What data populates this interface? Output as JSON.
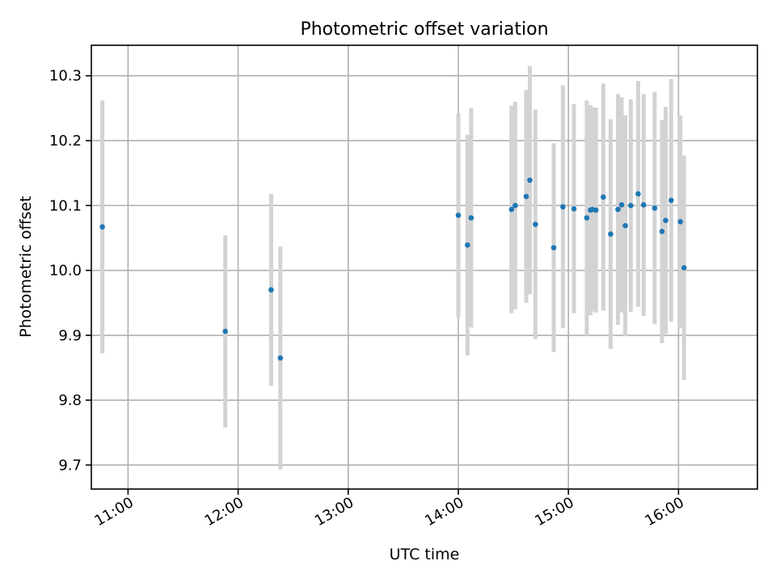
{
  "chart_data": {
    "type": "scatter",
    "title": "Photometric offset variation",
    "xlabel": "UTC time",
    "ylabel": "Photometric offset",
    "grid": true,
    "legend": "none",
    "x_unit": "UTC time (HH:MM)",
    "xlim": [
      "10:40",
      "16:43"
    ],
    "ylim": [
      9.663,
      10.347
    ],
    "x_ticks": [
      "11:00",
      "12:00",
      "13:00",
      "14:00",
      "15:00",
      "16:00"
    ],
    "y_ticks": [
      "9.7",
      "9.8",
      "9.9",
      "10.0",
      "10.1",
      "10.2",
      "10.3"
    ],
    "colors": {
      "points": "#1f77b4",
      "error_bars": "#d3d3d3"
    },
    "series": [
      {
        "x": [
          "10:46",
          "11:53",
          "12:18",
          "12:23",
          "14:00",
          "14:05",
          "14:07",
          "14:29",
          "14:31",
          "14:37",
          "14:39",
          "14:42",
          "14:52",
          "14:57",
          "15:03",
          "15:10",
          "15:12",
          "15:13",
          "15:15",
          "15:19",
          "15:23",
          "15:27",
          "15:29",
          "15:31",
          "15:34",
          "15:38",
          "15:41",
          "15:47",
          "15:51",
          "15:53",
          "15:56",
          "16:01",
          "16:03"
        ],
        "y": [
          10.067,
          9.906,
          9.97,
          9.865,
          10.085,
          10.039,
          10.081,
          10.094,
          10.1,
          10.114,
          10.139,
          10.071,
          10.035,
          10.098,
          10.095,
          10.081,
          10.093,
          10.094,
          10.093,
          10.113,
          10.056,
          10.094,
          10.101,
          10.069,
          10.1,
          10.118,
          10.101,
          10.096,
          10.06,
          10.077,
          10.108,
          10.075,
          10.004
        ],
        "y_error": [
          0.195,
          0.148,
          0.148,
          0.172,
          0.157,
          0.17,
          0.169,
          0.16,
          0.16,
          0.164,
          0.176,
          0.177,
          0.161,
          0.187,
          0.161,
          0.181,
          0.162,
          0.157,
          0.158,
          0.175,
          0.177,
          0.178,
          0.166,
          0.17,
          0.164,
          0.174,
          0.171,
          0.179,
          0.172,
          0.175,
          0.187,
          0.164,
          0.173
        ]
      }
    ]
  }
}
